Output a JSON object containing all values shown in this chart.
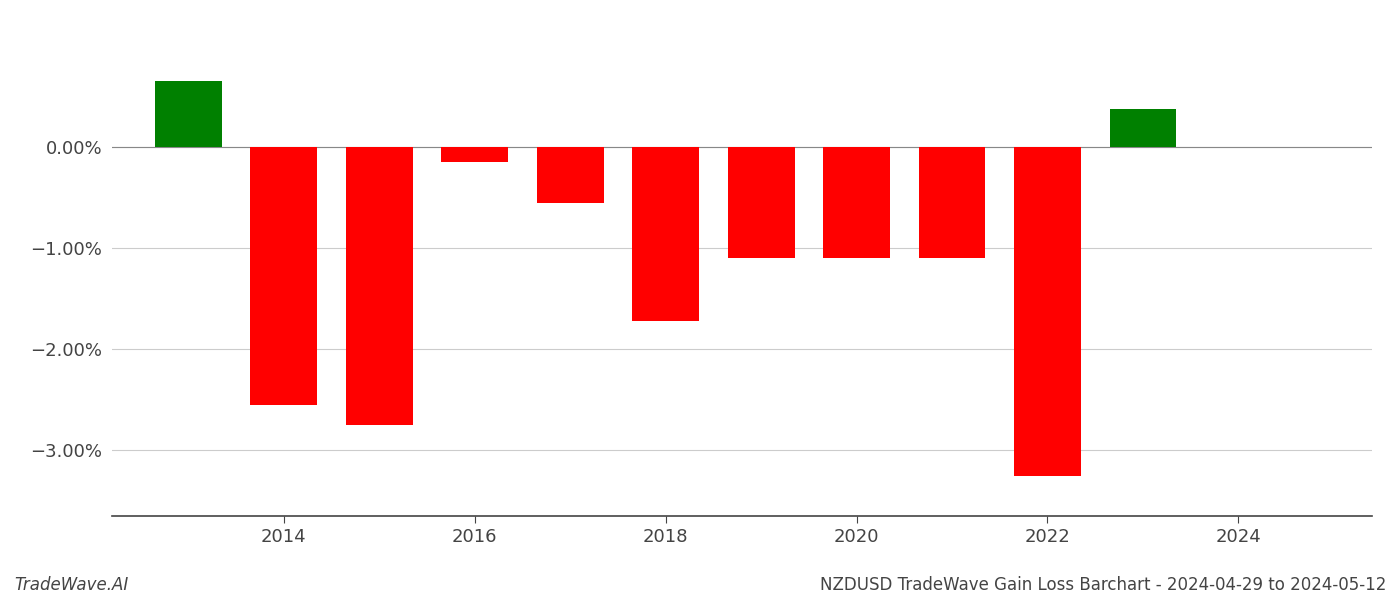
{
  "years": [
    2013,
    2014,
    2015,
    2016,
    2017,
    2018,
    2019,
    2020,
    2021,
    2022,
    2023
  ],
  "values": [
    0.65,
    -2.55,
    -2.75,
    -0.15,
    -0.55,
    -1.72,
    -1.1,
    -1.1,
    -1.1,
    -3.25,
    0.38
  ],
  "bar_colors": [
    "#008000",
    "#ff0000",
    "#ff0000",
    "#ff0000",
    "#ff0000",
    "#ff0000",
    "#ff0000",
    "#ff0000",
    "#ff0000",
    "#ff0000",
    "#008000"
  ],
  "title": "NZDUSD TradeWave Gain Loss Barchart - 2024-04-29 to 2024-05-12",
  "watermark": "TradeWave.AI",
  "ylim_min": -3.65,
  "ylim_max": 1.1,
  "xlim_min": 2012.2,
  "xlim_max": 2025.4,
  "ytick_values": [
    0.0,
    -1.0,
    -2.0,
    -3.0
  ],
  "ytick_labels": [
    "0.00%",
    "−1.00%",
    "−2.00%",
    "−3.00%"
  ],
  "xtick_values": [
    2014,
    2016,
    2018,
    2020,
    2022,
    2024
  ],
  "bar_width": 0.7,
  "title_fontsize": 12,
  "watermark_fontsize": 12,
  "tick_fontsize": 13,
  "background_color": "#ffffff",
  "grid_color": "#cccccc",
  "axis_color": "#444444"
}
